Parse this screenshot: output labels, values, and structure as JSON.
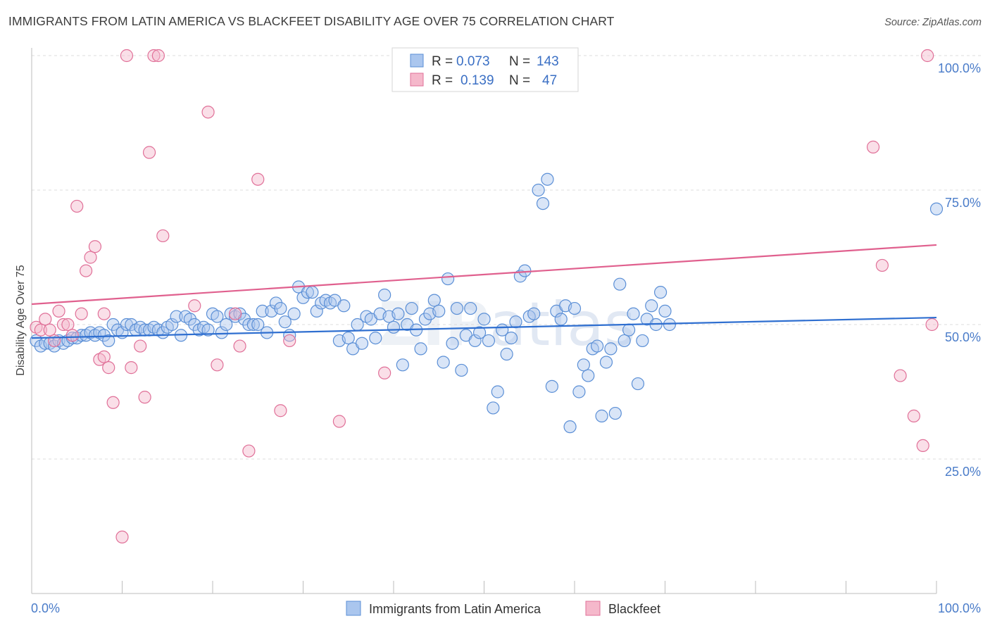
{
  "title": "IMMIGRANTS FROM LATIN AMERICA VS BLACKFEET DISABILITY AGE OVER 75 CORRELATION CHART",
  "source": "Source: ZipAtlas.com",
  "colors": {
    "blue": "#5b8fd6",
    "blue_fill": "#aac6ee",
    "pink": "#e07098",
    "pink_fill": "#f5b8cb",
    "tick_text": "#4a7cc9"
  },
  "legend": {
    "rows": [
      {
        "r_label": "R =",
        "r_value": "0.073",
        "n_label": "N =",
        "n_value": "143"
      },
      {
        "r_label": "R =",
        "r_value": "0.139",
        "n_label": "N =",
        "n_value": "47"
      }
    ]
  },
  "watermark": "ZIPatlas",
  "chart_data": {
    "type": "scatter",
    "ylabel": "Disability Age Over 75",
    "xlim": [
      0,
      100
    ],
    "ylim": [
      0,
      100
    ],
    "x_tick_labels": [
      "0.0%",
      "100.0%"
    ],
    "y_tick_labels": [
      "100.0%",
      "75.0%",
      "50.0%",
      "25.0%"
    ],
    "y_tick_values": [
      100,
      75,
      50,
      25
    ],
    "grid": "horizontal dashed",
    "legend_position": "top-center",
    "series": [
      {
        "name": "Immigrants from Latin America",
        "r": 0.073,
        "n": 143,
        "trend": {
          "x0": 0,
          "y0": 47.5,
          "x1": 100,
          "y1": 51.3
        },
        "points": [
          [
            0.5,
            47
          ],
          [
            1,
            46
          ],
          [
            1.5,
            46.5
          ],
          [
            2,
            46.5
          ],
          [
            2.5,
            46
          ],
          [
            3,
            47
          ],
          [
            3.5,
            46.5
          ],
          [
            4,
            47
          ],
          [
            4.5,
            47.5
          ],
          [
            5,
            47.5
          ],
          [
            5.5,
            48
          ],
          [
            6,
            48
          ],
          [
            6.5,
            48.5
          ],
          [
            7,
            48
          ],
          [
            7.5,
            48.5
          ],
          [
            8,
            48
          ],
          [
            8.5,
            47
          ],
          [
            9,
            50
          ],
          [
            9.5,
            49
          ],
          [
            10,
            48.5
          ],
          [
            10.5,
            50
          ],
          [
            11,
            50
          ],
          [
            11.5,
            49
          ],
          [
            12,
            49.5
          ],
          [
            12.5,
            49
          ],
          [
            13,
            49
          ],
          [
            13.5,
            49.5
          ],
          [
            14,
            49
          ],
          [
            14.5,
            48.5
          ],
          [
            15,
            49.5
          ],
          [
            15.5,
            50
          ],
          [
            16,
            51.5
          ],
          [
            16.5,
            48
          ],
          [
            17,
            51.5
          ],
          [
            17.5,
            51
          ],
          [
            18,
            50
          ],
          [
            18.5,
            49
          ],
          [
            19,
            49.5
          ],
          [
            19.5,
            49
          ],
          [
            20,
            52
          ],
          [
            20.5,
            51.5
          ],
          [
            21,
            48.5
          ],
          [
            21.5,
            50
          ],
          [
            22,
            52
          ],
          [
            22.5,
            51.5
          ],
          [
            23,
            52
          ],
          [
            23.5,
            51
          ],
          [
            24,
            50
          ],
          [
            24.5,
            50
          ],
          [
            25,
            50
          ],
          [
            25.5,
            52.5
          ],
          [
            26,
            48.5
          ],
          [
            26.5,
            52.5
          ],
          [
            27,
            54
          ],
          [
            27.5,
            53
          ],
          [
            28,
            50.5
          ],
          [
            28.5,
            48
          ],
          [
            29,
            52
          ],
          [
            29.5,
            57
          ],
          [
            30,
            55
          ],
          [
            30.5,
            56
          ],
          [
            31,
            56
          ],
          [
            31.5,
            52.5
          ],
          [
            32,
            54
          ],
          [
            32.5,
            54.5
          ],
          [
            33,
            54
          ],
          [
            33.5,
            54.5
          ],
          [
            34,
            47
          ],
          [
            34.5,
            53.5
          ],
          [
            35,
            47.5
          ],
          [
            35.5,
            45.5
          ],
          [
            36,
            50
          ],
          [
            36.5,
            46.5
          ],
          [
            37,
            51.5
          ],
          [
            37.5,
            51
          ],
          [
            38,
            47.5
          ],
          [
            38.5,
            52
          ],
          [
            39,
            55.5
          ],
          [
            39.5,
            51.5
          ],
          [
            40,
            49.5
          ],
          [
            40.5,
            52
          ],
          [
            41,
            42.5
          ],
          [
            41.5,
            50
          ],
          [
            42,
            53
          ],
          [
            42.5,
            49
          ],
          [
            43,
            45.5
          ],
          [
            43.5,
            51
          ],
          [
            44,
            52
          ],
          [
            44.5,
            54.5
          ],
          [
            45,
            52.5
          ],
          [
            45.5,
            43
          ],
          [
            46,
            58.5
          ],
          [
            46.5,
            46.5
          ],
          [
            47,
            53
          ],
          [
            47.5,
            41.5
          ],
          [
            48,
            48
          ],
          [
            48.5,
            53
          ],
          [
            49,
            47
          ],
          [
            49.5,
            48.5
          ],
          [
            50,
            51
          ],
          [
            50.5,
            47
          ],
          [
            51,
            34.5
          ],
          [
            51.5,
            37.5
          ],
          [
            52,
            49
          ],
          [
            52.5,
            44.5
          ],
          [
            53,
            47.5
          ],
          [
            53.5,
            50.5
          ],
          [
            54,
            59
          ],
          [
            54.5,
            60
          ],
          [
            55,
            51.5
          ],
          [
            55.5,
            52
          ],
          [
            56,
            75
          ],
          [
            56.5,
            72.5
          ],
          [
            57,
            77
          ],
          [
            57.5,
            38.5
          ],
          [
            58,
            52.5
          ],
          [
            58.5,
            51
          ],
          [
            59,
            53.5
          ],
          [
            59.5,
            31
          ],
          [
            60,
            53
          ],
          [
            60.5,
            37.5
          ],
          [
            61,
            42.5
          ],
          [
            61.5,
            40.5
          ],
          [
            62,
            45.5
          ],
          [
            62.5,
            46
          ],
          [
            63,
            33
          ],
          [
            63.5,
            43
          ],
          [
            64,
            45.5
          ],
          [
            64.5,
            33.5
          ],
          [
            65,
            57.5
          ],
          [
            65.5,
            47
          ],
          [
            66,
            49
          ],
          [
            66.5,
            52
          ],
          [
            67,
            39
          ],
          [
            67.5,
            47
          ],
          [
            68,
            51
          ],
          [
            68.5,
            53.5
          ],
          [
            69,
            50
          ],
          [
            69.5,
            56
          ],
          [
            70,
            52.5
          ],
          [
            70.5,
            50
          ],
          [
            100,
            71.5
          ]
        ]
      },
      {
        "name": "Blackfeet",
        "r": 0.139,
        "n": 47,
        "trend": {
          "x0": 0,
          "y0": 53.8,
          "x1": 100,
          "y1": 64.8
        },
        "points": [
          [
            0.5,
            49.5
          ],
          [
            1,
            49
          ],
          [
            1.5,
            51
          ],
          [
            2,
            49
          ],
          [
            2.5,
            47
          ],
          [
            3,
            52.5
          ],
          [
            3.5,
            50
          ],
          [
            4,
            50
          ],
          [
            4.5,
            48
          ],
          [
            5,
            72
          ],
          [
            5.5,
            52
          ],
          [
            6,
            60
          ],
          [
            6.5,
            62.5
          ],
          [
            7,
            64.5
          ],
          [
            7.5,
            43.5
          ],
          [
            8,
            44
          ],
          [
            8.5,
            42
          ],
          [
            9,
            35.5
          ],
          [
            10,
            10.5
          ],
          [
            10.5,
            100
          ],
          [
            11,
            42
          ],
          [
            12,
            46
          ],
          [
            12.5,
            36.5
          ],
          [
            13,
            82
          ],
          [
            13.5,
            100
          ],
          [
            14,
            100
          ],
          [
            14.5,
            66.5
          ],
          [
            18,
            53.5
          ],
          [
            19.5,
            89.5
          ],
          [
            20.5,
            42.5
          ],
          [
            22.5,
            52
          ],
          [
            23,
            46
          ],
          [
            24,
            26.5
          ],
          [
            25,
            77
          ],
          [
            27.5,
            34
          ],
          [
            28.5,
            47
          ],
          [
            34,
            32
          ],
          [
            39,
            41
          ],
          [
            55,
            100
          ],
          [
            93,
            83
          ],
          [
            94,
            61
          ],
          [
            96,
            40.5
          ],
          [
            97.5,
            33
          ],
          [
            98.5,
            27.5
          ],
          [
            99,
            100
          ],
          [
            99.5,
            50
          ],
          [
            8,
            52
          ]
        ]
      }
    ]
  },
  "bottom_legend": [
    {
      "label": "Immigrants from Latin America"
    },
    {
      "label": "Blackfeet"
    }
  ]
}
